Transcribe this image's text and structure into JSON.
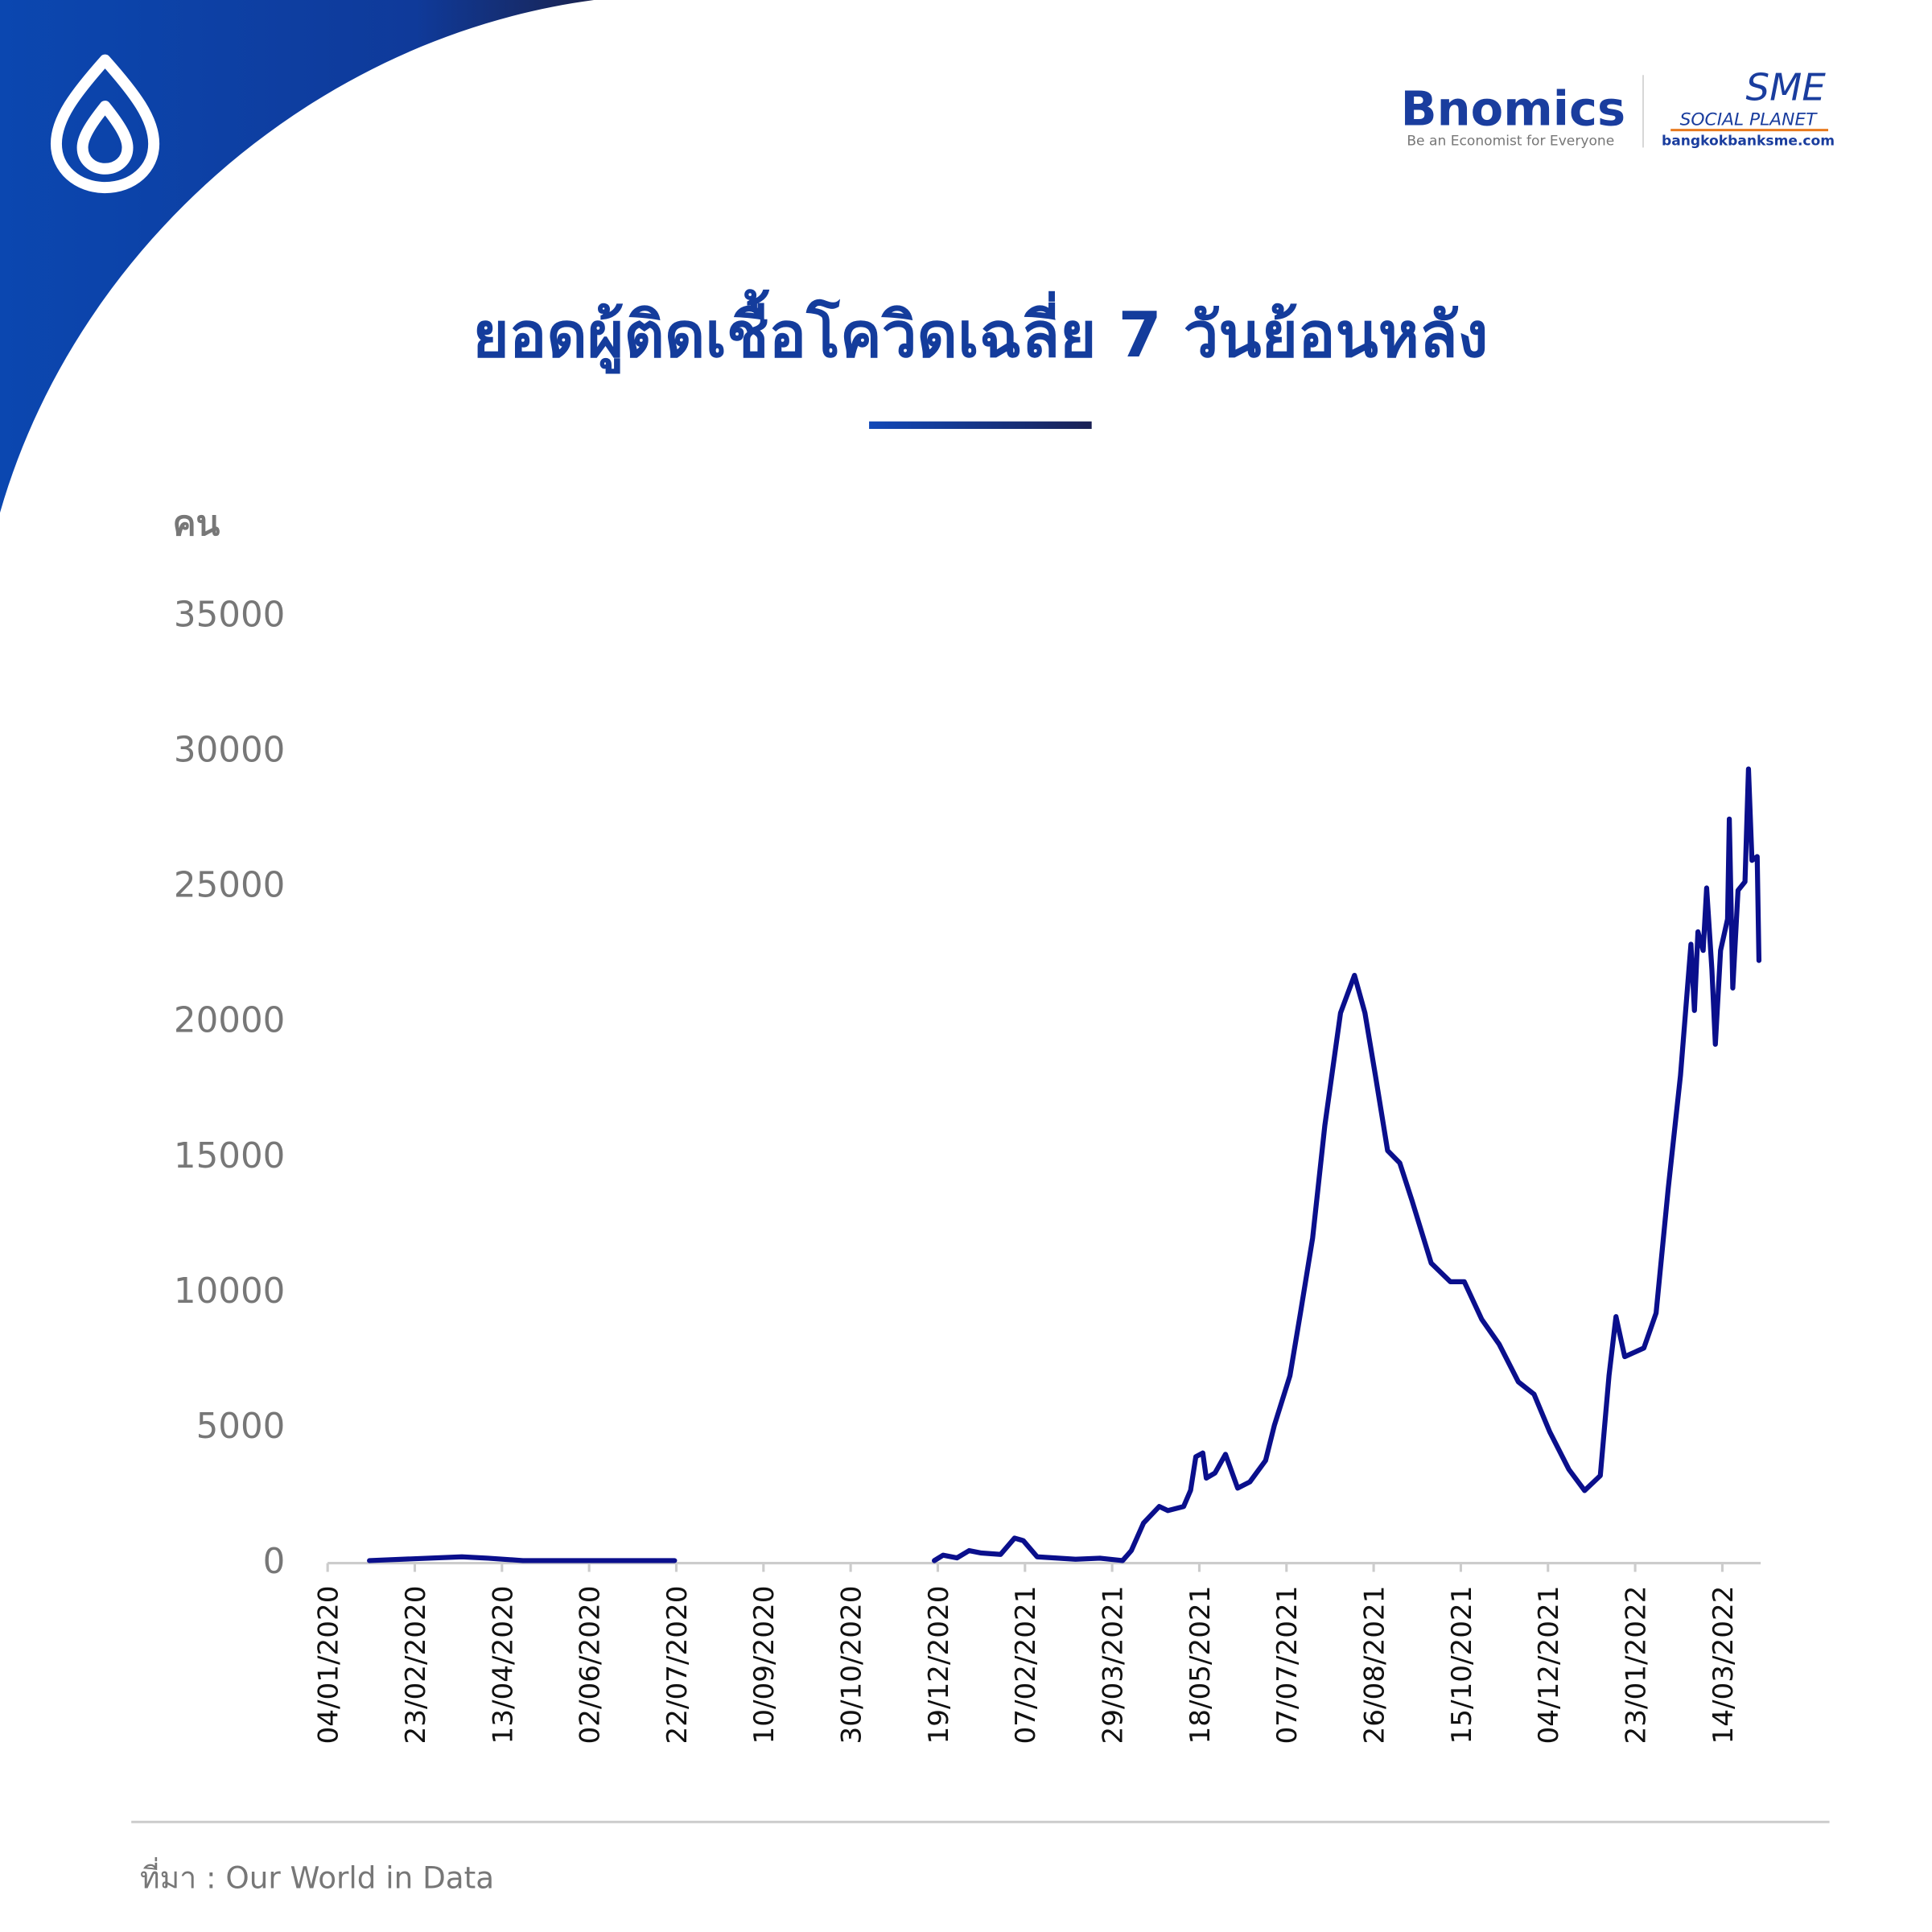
{
  "header": {
    "brand": "Bnomics",
    "tagline": "Be an Economist for Everyone",
    "partner": "SME",
    "partner_sub": "SOCIAL PLANET",
    "partner_url": "bangkokbanksme.com"
  },
  "chart_data": {
    "type": "line",
    "title": "ยอดผู้ติดเชื้อโควิดเฉลี่ย 7 วันย้อนหลัง",
    "y_label": "คน",
    "color": "#0a0f8c",
    "x": [
      "28/01/2020",
      "21/03/2020",
      "05/04/2020",
      "25/04/2020",
      "21/07/2020",
      "28/07/2020",
      "17/12/2020",
      "22/12/2020",
      "30/12/2020",
      "06/01/2021",
      "13/01/2021",
      "24/01/2021",
      "01/02/2021",
      "06/02/2021",
      "14/02/2021",
      "08/03/2021",
      "22/03/2021",
      "04/04/2021",
      "09/04/2021",
      "16/04/2021",
      "25/04/2021",
      "30/04/2021",
      "09/05/2021",
      "13/05/2021",
      "16/05/2021",
      "20/05/2021",
      "22/05/2021",
      "27/05/2021",
      "02/06/2021",
      "09/06/2021",
      "16/06/2021",
      "25/06/2021",
      "30/06/2021",
      "09/07/2021",
      "15/07/2021",
      "22/07/2021",
      "29/07/2021",
      "07/08/2021",
      "15/08/2021",
      "21/08/2021",
      "27/08/2021",
      "03/09/2021",
      "10/09/2021",
      "17/09/2021",
      "28/09/2021",
      "09/10/2021",
      "17/10/2021",
      "27/10/2021",
      "06/11/2021",
      "17/11/2021",
      "26/11/2021",
      "05/12/2021",
      "16/12/2021",
      "25/12/2021",
      "03/01/2022",
      "08/01/2022",
      "12/01/2022",
      "17/01/2022",
      "28/01/2022",
      "04/02/2022",
      "11/02/2022",
      "18/02/2022",
      "24/02/2022",
      "26/02/2022",
      "28/02/2022",
      "03/03/2022",
      "05/03/2022",
      "08/03/2022",
      "10/03/2022",
      "13/03/2022",
      "17/03/2022",
      "18/03/2022",
      "20/03/2022",
      "23/03/2022",
      "27/03/2022",
      "29/03/2022",
      "31/03/2022",
      "03/04/2022",
      "04/04/2022"
    ],
    "values": [
      0,
      140,
      90,
      0,
      0,
      null,
      0,
      200,
      100,
      370,
      280,
      230,
      830,
      740,
      140,
      50,
      90,
      0,
      370,
      1390,
      2000,
      1850,
      2000,
      2600,
      3840,
      3980,
      3050,
      3240,
      3930,
      2680,
      2910,
      3700,
      4990,
      6840,
      9150,
      11930,
      16090,
      20250,
      21640,
      20250,
      17940,
      15160,
      14700,
      13310,
      11000,
      10310,
      10310,
      8920,
      8000,
      6610,
      6150,
      4760,
      3370,
      2590,
      3140,
      6840,
      9020,
      7540,
      7860,
      9150,
      13780,
      17940,
      22790,
      20340,
      23250,
      22560,
      24870,
      21870,
      19090,
      22560,
      23720,
      27420,
      21170,
      24780,
      25100,
      29270,
      25890,
      26030,
      22190
    ],
    "xlim": [
      "04/01/2020",
      "05/04/2022"
    ],
    "xticks": [
      "04/01/2020",
      "23/02/2020",
      "13/04/2020",
      "02/06/2020",
      "22/07/2020",
      "10/09/2020",
      "30/10/2020",
      "19/12/2020",
      "07/02/2021",
      "29/03/2021",
      "18/05/2021",
      "07/07/2021",
      "26/08/2021",
      "15/10/2021",
      "04/12/2021",
      "23/01/2022",
      "14/03/2022"
    ],
    "ylim": [
      0,
      35000
    ],
    "yticks": [
      0,
      5000,
      10000,
      15000,
      20000,
      25000,
      30000,
      35000
    ]
  },
  "footer": {
    "source": "ที่มา : Our World in Data"
  }
}
